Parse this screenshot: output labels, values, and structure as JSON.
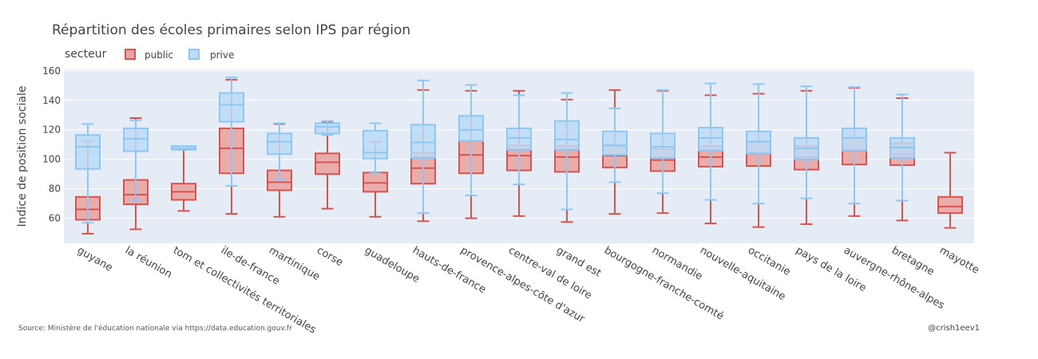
{
  "chart_data": {
    "type": "box",
    "title": "Répartition des écoles primaires selon IPS par région",
    "legend_title": "secteur",
    "legend_placement": "top-left",
    "xlabel": "",
    "ylabel": "Indice de position sociale",
    "ylim": [
      43,
      161
    ],
    "yticks": [
      60,
      80,
      100,
      120,
      140,
      160
    ],
    "grid": true,
    "categories": [
      "guyane",
      "la réunion",
      "tom et collectivités territoriales",
      "ile-de-france",
      "martinique",
      "corse",
      "guadeloupe",
      "hauts-de-france",
      "provence-alpes-côte d'azur",
      "centre-val de loire",
      "grand est",
      "bourgogne-franche-comté",
      "normandie",
      "nouvelle-aquitaine",
      "occitanie",
      "pays de la loire",
      "auvergne-rhône-alpes",
      "bretagne",
      "mayotte"
    ],
    "series": [
      {
        "name": "public",
        "color": "#d9534f",
        "fill": "#e8a5a3",
        "boxes": [
          {
            "min": 49.5,
            "q1": 59,
            "median": 66,
            "q3": 74.5,
            "max": 112.5
          },
          {
            "min": 52.5,
            "q1": 69.5,
            "median": 76,
            "q3": 86,
            "max": 128
          },
          {
            "min": 65,
            "q1": 72.5,
            "median": 78,
            "q3": 83.5,
            "max": 106.5
          },
          {
            "min": 63,
            "q1": 90.5,
            "median": 107.5,
            "q3": 121,
            "max": 154
          },
          {
            "min": 61,
            "q1": 79,
            "median": 84.5,
            "q3": 92.5,
            "max": 124
          },
          {
            "min": 66.5,
            "q1": 90,
            "median": 98,
            "q3": 104,
            "max": 125
          },
          {
            "min": 61,
            "q1": 78,
            "median": 84,
            "q3": 91,
            "max": 112
          },
          {
            "min": 58,
            "q1": 83.5,
            "median": 94,
            "q3": 104.5,
            "max": 147
          },
          {
            "min": 60,
            "q1": 90.5,
            "median": 103,
            "q3": 112.5,
            "max": 146.5
          },
          {
            "min": 61.5,
            "q1": 92.5,
            "median": 102.5,
            "q3": 109.5,
            "max": 146.5
          },
          {
            "min": 57.5,
            "q1": 91.5,
            "median": 101.5,
            "q3": 109,
            "max": 140.5
          },
          {
            "min": 63,
            "q1": 94.5,
            "median": 102.5,
            "q3": 109,
            "max": 147
          },
          {
            "min": 63.5,
            "q1": 92,
            "median": 99.5,
            "q3": 107,
            "max": 146.5
          },
          {
            "min": 56.5,
            "q1": 95,
            "median": 101.5,
            "q3": 109,
            "max": 143.5
          },
          {
            "min": 54,
            "q1": 95.5,
            "median": 104,
            "q3": 112,
            "max": 144.5
          },
          {
            "min": 56,
            "q1": 93,
            "median": 101.5,
            "q3": 109,
            "max": 146.5
          },
          {
            "min": 61.5,
            "q1": 96.5,
            "median": 106,
            "q3": 114.5,
            "max": 148.5
          },
          {
            "min": 58.5,
            "q1": 96,
            "median": 103.5,
            "q3": 111,
            "max": 141.5
          },
          {
            "min": 53.5,
            "q1": 63.5,
            "median": 68,
            "q3": 74.5,
            "max": 104.5
          }
        ]
      },
      {
        "name": "prive",
        "color": "#8ec7f3",
        "fill": "#bcdcf7",
        "boxes": [
          {
            "min": 57,
            "q1": 93.5,
            "median": 108.5,
            "q3": 116.5,
            "max": 124
          },
          {
            "min": 72,
            "q1": 105.5,
            "median": 114,
            "q3": 121,
            "max": 126.5
          },
          {
            "min": 106.5,
            "q1": 106.5,
            "median": 107.5,
            "q3": 109,
            "max": 109
          },
          {
            "min": 82,
            "q1": 125.5,
            "median": 137,
            "q3": 145,
            "max": 155.5
          },
          {
            "min": 86,
            "q1": 103.5,
            "median": 112,
            "q3": 117.5,
            "max": 124.5
          },
          {
            "min": 116.5,
            "q1": 117.5,
            "median": 122,
            "q3": 124.5,
            "max": 126
          },
          {
            "min": 90.5,
            "q1": 100.5,
            "median": 104.5,
            "q3": 119.5,
            "max": 124.5
          },
          {
            "min": 63.5,
            "q1": 101,
            "median": 111.5,
            "q3": 123.5,
            "max": 153.5
          },
          {
            "min": 75.5,
            "q1": 112.5,
            "median": 120,
            "q3": 129.5,
            "max": 150.5
          },
          {
            "min": 83,
            "q1": 106.5,
            "median": 114.5,
            "q3": 121,
            "max": 143.5
          },
          {
            "min": 66,
            "q1": 106.5,
            "median": 113.5,
            "q3": 126,
            "max": 145
          },
          {
            "min": 84.5,
            "q1": 103,
            "median": 109.5,
            "q3": 119,
            "max": 134.5
          },
          {
            "min": 77,
            "q1": 101,
            "median": 108.5,
            "q3": 117.5,
            "max": 147
          },
          {
            "min": 72.5,
            "q1": 106,
            "median": 114.5,
            "q3": 121.5,
            "max": 151.5
          },
          {
            "min": 70,
            "q1": 104,
            "median": 112,
            "q3": 119,
            "max": 151
          },
          {
            "min": 73.5,
            "q1": 100,
            "median": 107.5,
            "q3": 114.5,
            "max": 149.5
          },
          {
            "min": 70,
            "q1": 106,
            "median": 114.5,
            "q3": 121,
            "max": 149
          },
          {
            "min": 72,
            "q1": 101,
            "median": 108,
            "q3": 114.5,
            "max": 144
          }
        ]
      }
    ],
    "source_note": "Source: Ministère de l'éducation nationale via https://data.education.gouv.fr",
    "credit": "@crish1eev1",
    "plot_background": "#e5ecf6",
    "grid_color": "#ffffff"
  }
}
